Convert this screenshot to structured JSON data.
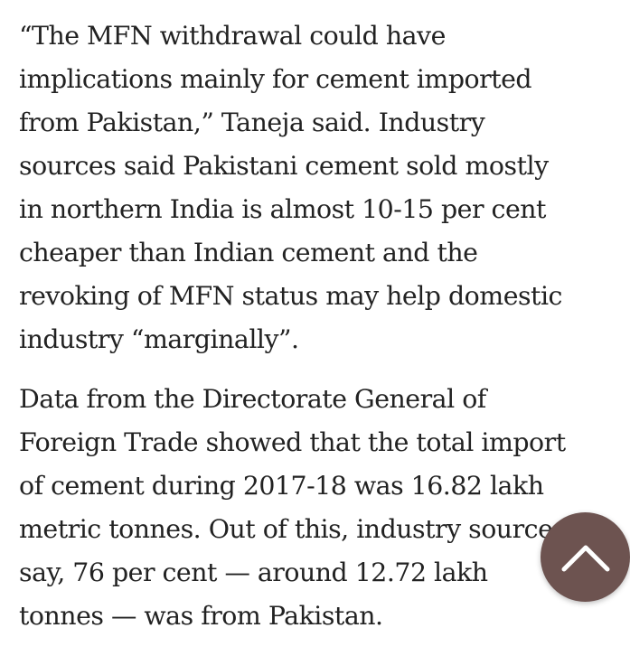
{
  "article": {
    "paragraphs": [
      {
        "lines": [
          "“The MFN withdrawal could have",
          "implications mainly for cement imported",
          "from Pakistan,” Taneja said. Industry",
          "sources said Pakistani cement sold mostly",
          "in northern India is almost 10-15 per cent",
          "cheaper than Indian cement and the",
          "revoking of MFN status may help domestic",
          "industry “marginally”."
        ]
      },
      {
        "lines": [
          "Data from the Directorate General of",
          "Foreign Trade showed that the total import",
          "of cement during 2017-18 was 16.82 lakh",
          "metric tonnes. Out of this, industry sources",
          "say, 76 per cent — around 12.72 lakh",
          "tonnes — was from Pakistan."
        ]
      }
    ]
  },
  "scroll_top_button": {
    "icon": "chevron-up-icon",
    "background_color": "#6d5350",
    "icon_color": "#ffffff"
  },
  "colors": {
    "text": "#222222",
    "background": "#ffffff"
  }
}
